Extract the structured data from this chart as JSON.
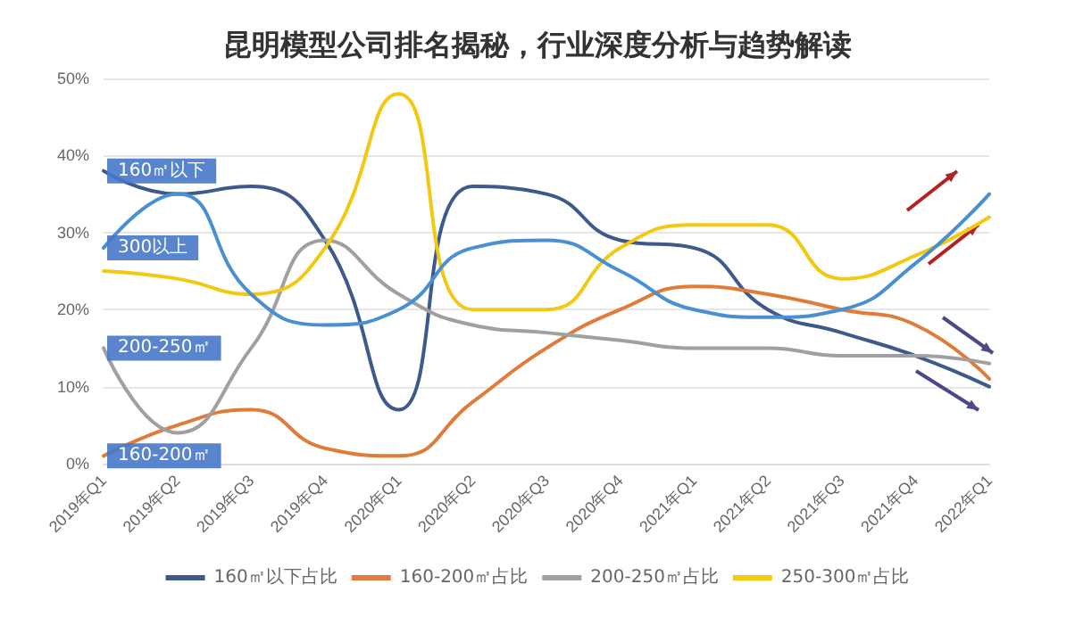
{
  "chart_data": {
    "type": "line",
    "title": "昆明模型公司排名揭秘，行业深度分析与趋势解读",
    "categories": [
      "2019年Q1",
      "2019年Q2",
      "2019年Q3",
      "2019年Q4",
      "2020年Q1",
      "2020年Q2",
      "2020年Q3",
      "2020年Q4",
      "2021年Q1",
      "2021年Q2",
      "2021年Q3",
      "2021年Q4",
      "2022年Q1"
    ],
    "series": [
      {
        "name": "160㎡以下占比",
        "color": "#3d5a8a",
        "values": [
          38,
          35,
          36,
          29,
          7,
          36,
          35,
          29,
          28,
          20,
          17,
          14,
          10
        ]
      },
      {
        "name": "160-200㎡占比",
        "color": "#e07b39",
        "values": [
          1,
          5,
          7,
          2,
          1,
          8,
          15,
          20,
          23,
          22,
          20,
          18,
          11
        ]
      },
      {
        "name": "200-250㎡占比",
        "color": "#a0a0a0",
        "values": [
          15,
          4,
          15,
          29,
          22,
          18,
          17,
          16,
          15,
          15,
          14,
          14,
          13
        ]
      },
      {
        "name": "250-300㎡占比",
        "color": "#f2c811",
        "values": [
          25,
          24,
          22,
          28,
          48,
          20,
          20,
          28,
          31,
          31,
          24,
          27,
          32
        ]
      },
      {
        "color": "#4a90d0",
        "values": [
          28,
          35,
          22,
          18,
          20,
          28,
          29,
          25,
          20,
          19,
          20,
          26,
          35
        ]
      }
    ],
    "annotations": [
      {
        "text": "160㎡以下",
        "x": "2019年Q1",
        "y": 38
      },
      {
        "text": "300以上",
        "x": "2019年Q1",
        "y": 28
      },
      {
        "text": "200-250㎡",
        "x": "2019年Q1",
        "y": 15
      },
      {
        "text": "160-200㎡",
        "x": "2019年Q1",
        "y": 1
      }
    ],
    "ylim": [
      0,
      50
    ],
    "yticks": [
      {
        "value": 0,
        "label": "0%"
      },
      {
        "value": 10,
        "label": "10%"
      },
      {
        "value": 20,
        "label": "20%"
      },
      {
        "value": 30,
        "label": "30%"
      },
      {
        "value": 40,
        "label": "40%"
      },
      {
        "value": 50,
        "label": "50%"
      }
    ],
    "grid": "y",
    "legend": "bottom",
    "marker": "none",
    "line_style": "solid"
  }
}
